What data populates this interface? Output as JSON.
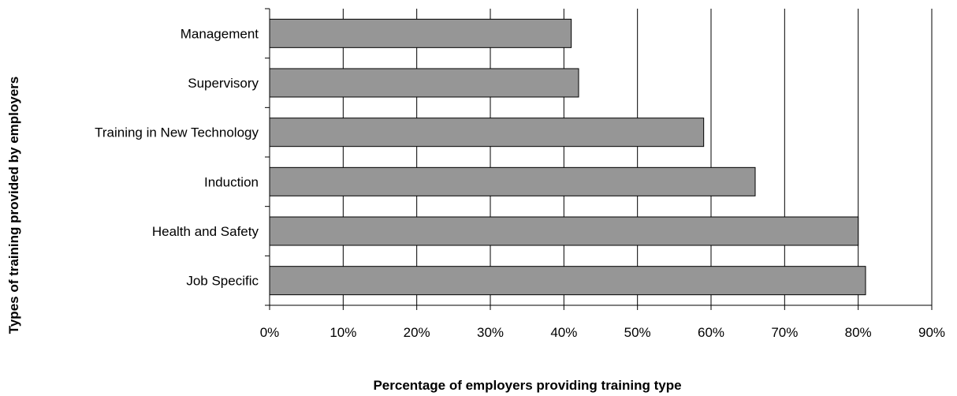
{
  "chart_data": {
    "type": "bar",
    "orientation": "horizontal",
    "title": "",
    "xlabel": "Percentage of employers providing training type",
    "ylabel": "Types of training provided by employers",
    "categories": [
      "Management",
      "Supervisory",
      "Training in New Technology",
      "Induction",
      "Health and Safety",
      "Job Specific"
    ],
    "values": [
      41,
      42,
      59,
      66,
      80,
      81
    ],
    "value_unit": "%",
    "xlim": [
      0,
      90
    ],
    "xticks": [
      "0%",
      "10%",
      "20%",
      "30%",
      "40%",
      "50%",
      "60%",
      "70%",
      "80%",
      "90%"
    ],
    "grid": "vertical",
    "legend": "none",
    "bar_color": "#969696",
    "bar_edge_color": "#000000"
  }
}
